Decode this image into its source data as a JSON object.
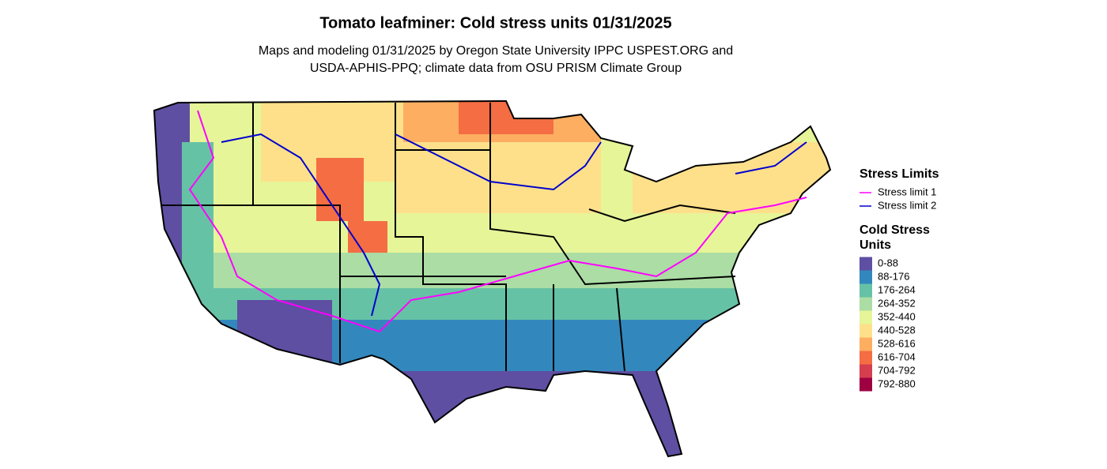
{
  "header": {
    "title": "Tomato leafminer: Cold stress units 01/31/2025",
    "subtitle_lines": [
      "Maps and modeling 01/31/2025 by Oregon State University IPPC USPEST.ORG and",
      "USDA-APHIS-PPQ; climate data from OSU PRISM Climate Group"
    ]
  },
  "legend": {
    "stress_title": "Stress Limits",
    "stress_items": [
      {
        "label": "Stress limit 1",
        "color": "#ff00ff"
      },
      {
        "label": "Stress limit 2",
        "color": "#0000cd"
      }
    ],
    "units_title_lines": [
      "Cold Stress",
      "Units"
    ],
    "units_items": [
      {
        "label": "0-88",
        "color": "#5e4fa2"
      },
      {
        "label": "88-176",
        "color": "#3288bd"
      },
      {
        "label": "176-264",
        "color": "#66c2a5"
      },
      {
        "label": "264-352",
        "color": "#abdda4"
      },
      {
        "label": "352-440",
        "color": "#e6f598"
      },
      {
        "label": "440-528",
        "color": "#fee08b"
      },
      {
        "label": "528-616",
        "color": "#fdae61"
      },
      {
        "label": "616-704",
        "color": "#f46d43"
      },
      {
        "label": "704-792",
        "color": "#d53e4f"
      },
      {
        "label": "792-880",
        "color": "#9e0142"
      }
    ]
  }
}
